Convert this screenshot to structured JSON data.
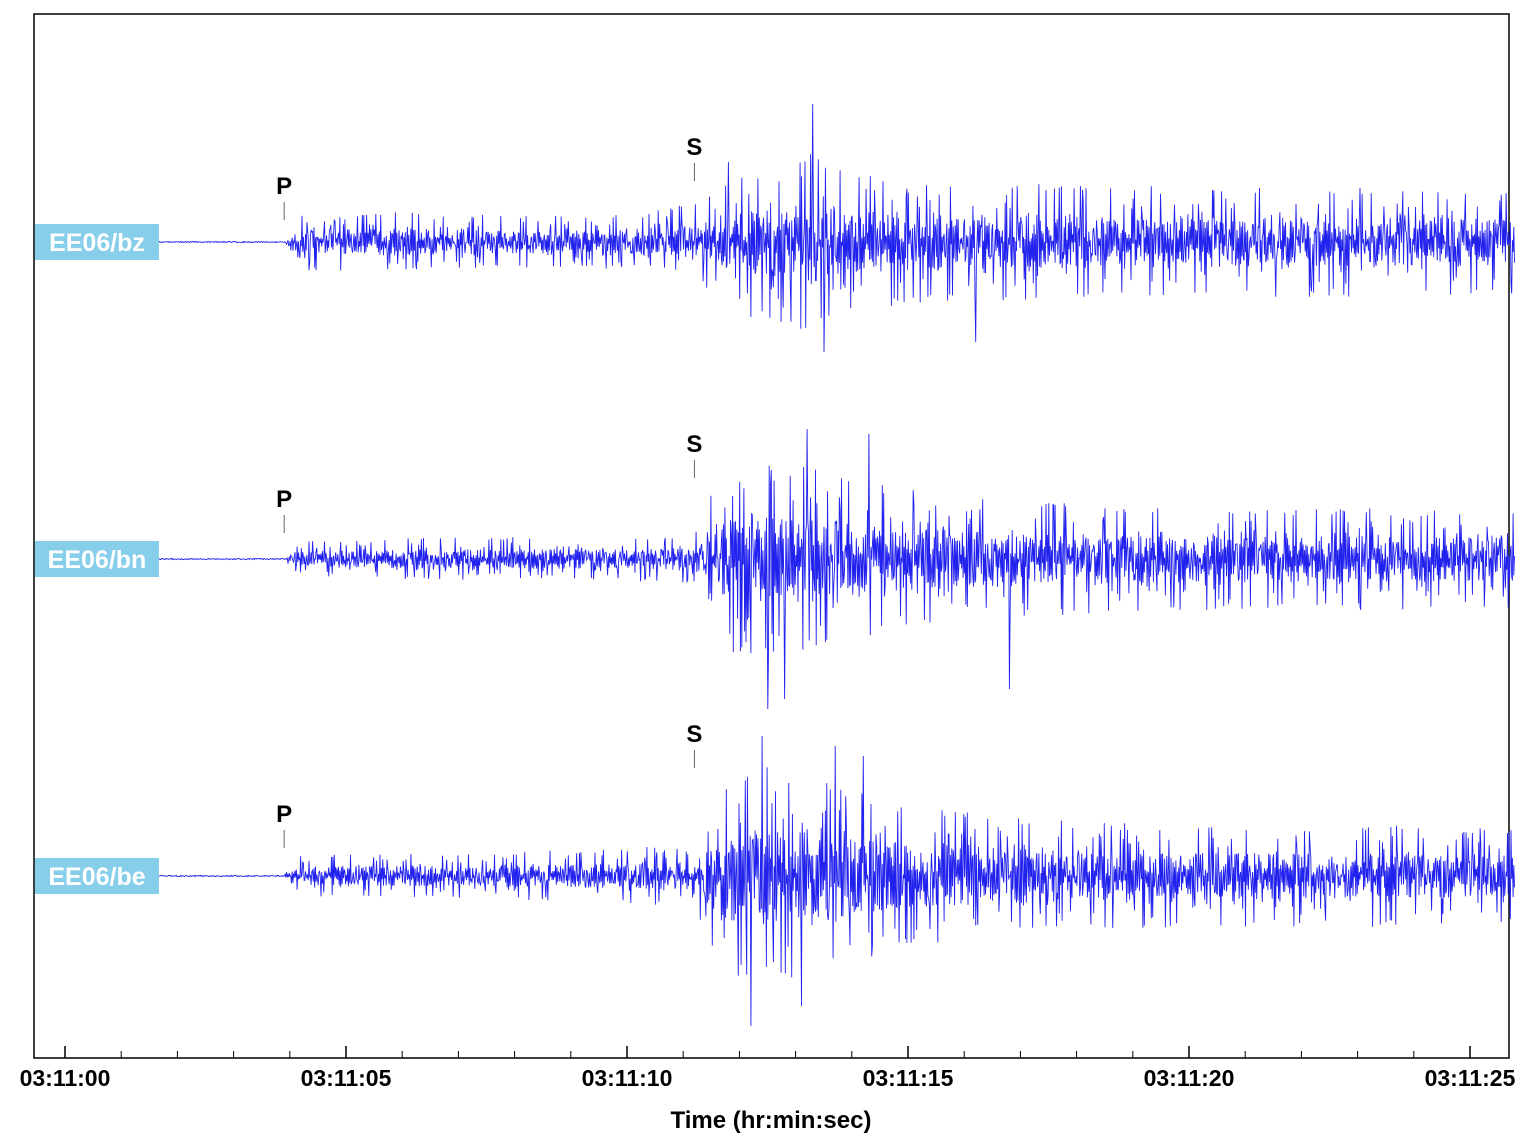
{
  "chart_data": {
    "type": "line",
    "title": "",
    "xlabel": "Time (hr:min:sec)",
    "ylabel": "",
    "x_range_seconds_after_03_11_00": [
      -0.5,
      25.8
    ],
    "x_tick_labels": [
      "03:11:00",
      "03:11:05",
      "03:11:10",
      "03:11:15",
      "03:11:20",
      "03:11:25"
    ],
    "x_tick_values": [
      0,
      5,
      10,
      15,
      20,
      25
    ],
    "grid": false,
    "legend": "none",
    "trace_color": "#2222ee",
    "label_box_color": "#87ceeb",
    "series": [
      {
        "name": "EE06/bz",
        "p_label": "P",
        "p_time": 3.9,
        "s_label": "S",
        "s_time": 11.2,
        "envelope": [
          [
            0,
            1
          ],
          [
            3.9,
            1
          ],
          [
            4.2,
            28
          ],
          [
            6,
            30
          ],
          [
            8,
            26
          ],
          [
            10,
            28
          ],
          [
            11.2,
            40
          ],
          [
            12,
            65
          ],
          [
            13.3,
            95
          ],
          [
            14,
            70
          ],
          [
            15,
            62
          ],
          [
            18,
            58
          ],
          [
            20,
            55
          ],
          [
            25.8,
            55
          ]
        ],
        "spikes": [
          [
            13.3,
            138
          ],
          [
            13.5,
            -110
          ],
          [
            11.8,
            80
          ],
          [
            12.2,
            -75
          ],
          [
            16.2,
            -100
          ]
        ]
      },
      {
        "name": "EE06/bn",
        "p_label": "P",
        "p_time": 3.9,
        "s_label": "S",
        "s_time": 11.2,
        "envelope": [
          [
            0,
            1
          ],
          [
            3.9,
            1
          ],
          [
            4.2,
            18
          ],
          [
            7,
            22
          ],
          [
            10,
            22
          ],
          [
            11.2,
            25
          ],
          [
            11.7,
            95
          ],
          [
            12.5,
            100
          ],
          [
            13.5,
            88
          ],
          [
            15,
            70
          ],
          [
            18,
            55
          ],
          [
            20,
            52
          ],
          [
            25.8,
            50
          ]
        ],
        "spikes": [
          [
            12.5,
            -150
          ],
          [
            13.2,
            130
          ],
          [
            14.3,
            125
          ],
          [
            12.8,
            -140
          ],
          [
            16.8,
            -130
          ]
        ]
      },
      {
        "name": "EE06/be",
        "p_label": "P",
        "p_time": 3.9,
        "s_label": "S",
        "s_time": 11.2,
        "envelope": [
          [
            0,
            1
          ],
          [
            3.9,
            1
          ],
          [
            4.2,
            22
          ],
          [
            7,
            22
          ],
          [
            10,
            28
          ],
          [
            11.2,
            32
          ],
          [
            11.7,
            95
          ],
          [
            12.5,
            115
          ],
          [
            13.5,
            95
          ],
          [
            15,
            70
          ],
          [
            18,
            55
          ],
          [
            20,
            52
          ],
          [
            25.8,
            50
          ]
        ],
        "spikes": [
          [
            12.2,
            -150
          ],
          [
            12.4,
            140
          ],
          [
            13.1,
            -130
          ],
          [
            14.2,
            120
          ],
          [
            13.7,
            130
          ]
        ]
      }
    ]
  }
}
